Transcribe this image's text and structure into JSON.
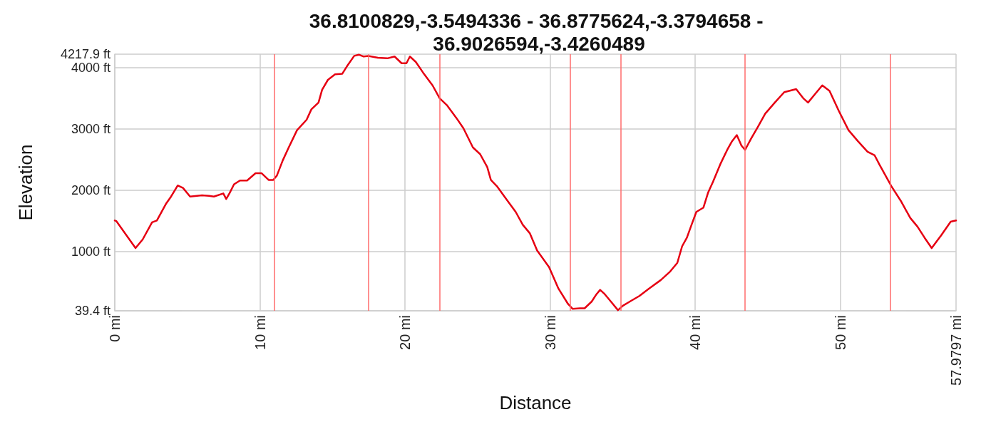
{
  "chart_data": {
    "type": "line",
    "title": "36.8100829,-3.5494336 - 36.8775624,-3.3794658 - 36.9026594,-3.4260489",
    "xlabel": "Distance",
    "ylabel": "Elevation",
    "x": [
      0,
      0.11,
      1.43,
      1.92,
      2.57,
      2.9,
      3.55,
      3.88,
      4.34,
      4.7,
      5.19,
      6.01,
      6.5,
      6.83,
      7.48,
      7.68,
      7.9,
      8.22,
      8.63,
      9.12,
      9.7,
      10.11,
      10.6,
      10.92,
      11.17,
      11.58,
      11.99,
      12.56,
      13.22,
      13.55,
      14.04,
      14.29,
      14.69,
      15.18,
      15.68,
      16,
      16.5,
      16.82,
      17.15,
      17.48,
      18.13,
      18.79,
      19.28,
      19.77,
      20.1,
      20.34,
      20.75,
      21.24,
      21.9,
      22.39,
      22.88,
      23.54,
      24.03,
      24.68,
      25.18,
      25.67,
      25.92,
      26.33,
      26.98,
      27.63,
      28.12,
      28.61,
      29.11,
      29.93,
      30.58,
      31.24,
      31.56,
      32.05,
      32.38,
      32.87,
      33.2,
      33.45,
      33.77,
      34.19,
      34.68,
      35,
      35.5,
      36.15,
      36.81,
      37.63,
      38.28,
      38.77,
      39.1,
      39.43,
      39.75,
      40.08,
      40.57,
      40.9,
      41.23,
      41.72,
      42.21,
      42.54,
      42.87,
      43.19,
      43.44,
      43.85,
      44.34,
      44.83,
      45.49,
      46.14,
      46.96,
      47.45,
      47.78,
      48.27,
      48.76,
      49.26,
      49.91,
      50.57,
      51.22,
      51.88,
      52.37,
      52.7,
      53.52,
      54.17,
      54.83,
      55.32,
      55.81,
      56.3,
      56.96,
      57.61,
      57.9797
    ],
    "values": [
      1510,
      1500,
      1060,
      1200,
      1480,
      1510,
      1790,
      1900,
      2080,
      2040,
      1900,
      1920,
      1910,
      1900,
      1950,
      1860,
      1950,
      2100,
      2160,
      2160,
      2280,
      2280,
      2170,
      2170,
      2240,
      2490,
      2700,
      2980,
      3150,
      3320,
      3430,
      3640,
      3800,
      3890,
      3900,
      4020,
      4190,
      4210,
      4180,
      4190,
      4160,
      4150,
      4180,
      4070,
      4070,
      4180,
      4090,
      3920,
      3710,
      3500,
      3390,
      3180,
      3010,
      2700,
      2590,
      2380,
      2170,
      2070,
      1860,
      1650,
      1440,
      1300,
      1020,
      750,
      400,
      150,
      70,
      80,
      80,
      190,
      310,
      380,
      310,
      190,
      50,
      120,
      190,
      280,
      400,
      540,
      680,
      820,
      1090,
      1230,
      1440,
      1650,
      1720,
      1970,
      2140,
      2420,
      2660,
      2800,
      2900,
      2730,
      2660,
      2840,
      3040,
      3250,
      3430,
      3600,
      3650,
      3500,
      3430,
      3570,
      3710,
      3620,
      3290,
      2980,
      2800,
      2630,
      2570,
      2420,
      2070,
      1830,
      1550,
      1410,
      1230,
      1060,
      1270,
      1490,
      1510
    ],
    "color": "#e60012",
    "marker": "none",
    "xlim": [
      0,
      57.9797
    ],
    "xticks": [
      {
        "value": 0,
        "label": "0 mi"
      },
      {
        "value": 10,
        "label": "10 mi"
      },
      {
        "value": 20,
        "label": "20 mi"
      },
      {
        "value": 30,
        "label": "30 mi"
      },
      {
        "value": 40,
        "label": "40 mi"
      },
      {
        "value": 50,
        "label": "50 mi"
      },
      {
        "value": 57.9797,
        "label": "57.9797 mi"
      }
    ],
    "ylim": [
      39.4,
      4217.9
    ],
    "yticks": [
      {
        "value": 39.4,
        "label": "39.4 ft"
      },
      {
        "value": 1000,
        "label": "1000 ft"
      },
      {
        "value": 2000,
        "label": "2000 ft"
      },
      {
        "value": 3000,
        "label": "3000 ft"
      },
      {
        "value": 4000,
        "label": "4000 ft"
      },
      {
        "value": 4217.9,
        "label": "4217.9 ft"
      }
    ],
    "grid": true,
    "ref_lines": [
      {
        "axis": "x",
        "value": 11.0,
        "color": "#ff6b6b"
      },
      {
        "axis": "x",
        "value": 17.49,
        "color": "#ff6b6b"
      },
      {
        "axis": "x",
        "value": 22.39,
        "color": "#ff6b6b"
      },
      {
        "axis": "x",
        "value": 31.37,
        "color": "#ff6b6b"
      },
      {
        "axis": "x",
        "value": 34.89,
        "color": "#ff6b6b"
      },
      {
        "axis": "x",
        "value": 43.44,
        "color": "#ff6b6b"
      },
      {
        "axis": "x",
        "value": 53.46,
        "color": "#ff6b6b"
      }
    ]
  }
}
